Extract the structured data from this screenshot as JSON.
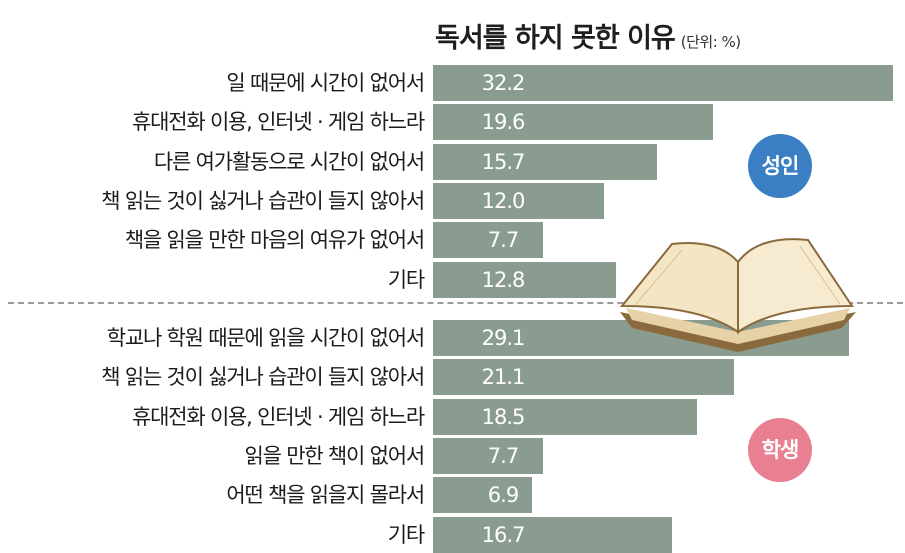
{
  "title": "독서를 하지 못한 이유",
  "unit": "(단위: %)",
  "colors": {
    "bar": "#8a9b90",
    "adult_badge": "#3a7ec3",
    "student_badge": "#e98092"
  },
  "chart_data": [
    {
      "type": "bar",
      "orientation": "horizontal",
      "group_label": "성인",
      "categories": [
        "일 때문에 시간이 없어서",
        "휴대전화 이용, 인터넷 · 게임 하느라",
        "다른 여가활동으로 시간이 없어서",
        "책 읽는 것이 싫거나 습관이 들지 않아서",
        "책을 읽을 만한 마음의 여유가 없어서",
        "기타"
      ],
      "values": [
        32.2,
        19.6,
        15.7,
        12.0,
        7.7,
        12.8
      ],
      "value_labels": [
        "32.2",
        "19.6",
        "15.7",
        "12.0",
        "7.7",
        "12.8"
      ],
      "xlim": [
        0,
        32.2
      ]
    },
    {
      "type": "bar",
      "orientation": "horizontal",
      "group_label": "학생",
      "categories": [
        "학교나 학원 때문에 읽을 시간이 없어서",
        "책 읽는 것이 싫거나 습관이 들지 않아서",
        "휴대전화 이용, 인터넷 · 게임 하느라",
        "읽을 만한 책이 없어서",
        "어떤 책을 읽을지 몰라서",
        "기타"
      ],
      "values": [
        29.1,
        21.1,
        18.5,
        7.7,
        6.9,
        16.7
      ],
      "value_labels": [
        "29.1",
        "21.1",
        "18.5",
        "7.7",
        "6.9",
        "16.7"
      ],
      "xlim": [
        0,
        32.2
      ]
    }
  ]
}
